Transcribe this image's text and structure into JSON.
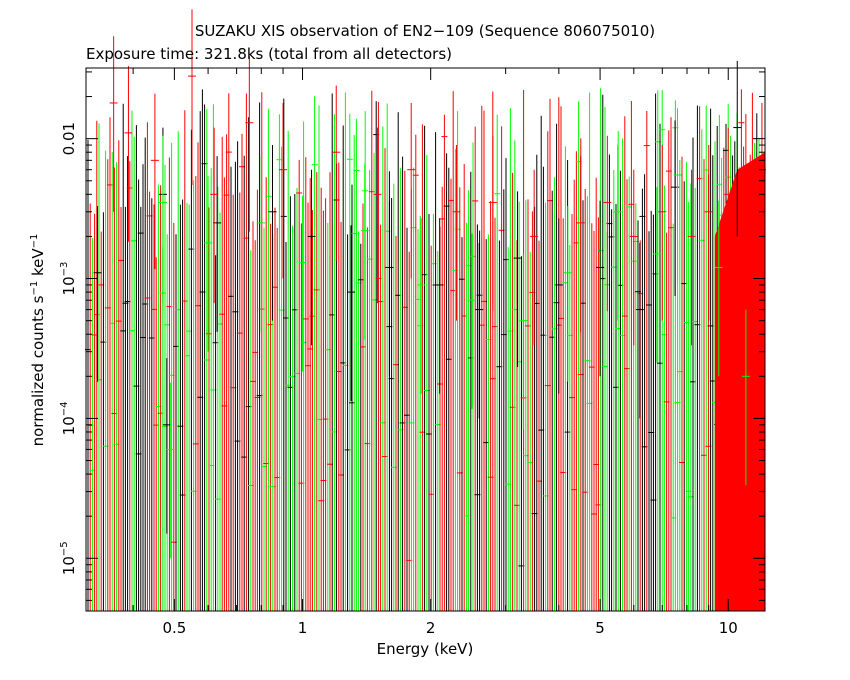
{
  "chart_data": {
    "type": "scatter",
    "title": "SUZAKU XIS observation of EN2−109 (Sequence 806075010)",
    "subtitle": "Exposure time: 321.8ks (total from all detectors)",
    "xlabel": "Energy (keV)",
    "ylabel": {
      "main": "normalized counts s",
      "exp1": "−1",
      "unit": " keV",
      "exp2": "−1"
    },
    "xscale": "log",
    "yscale": "log",
    "xlim": [
      0.31,
      12.2
    ],
    "ylim": [
      4.2e-06,
      0.032
    ],
    "xticks": [
      {
        "value": 0.5,
        "label": "0.5"
      },
      {
        "value": 1,
        "label": "1"
      },
      {
        "value": 2,
        "label": "2"
      },
      {
        "value": 5,
        "label": "5"
      },
      {
        "value": 10,
        "label": "10"
      }
    ],
    "yticks": [
      {
        "value": 0.01,
        "base": "0.01",
        "exp": ""
      },
      {
        "value": 0.001,
        "base": "10",
        "exp": "−3"
      },
      {
        "value": 0.0001,
        "base": "10",
        "exp": "−4"
      },
      {
        "value": 1e-05,
        "base": "10",
        "exp": "−5"
      }
    ],
    "series": [
      {
        "color": "#000000",
        "points": [
          [
            0.33,
            0.0011
          ],
          [
            0.47,
            0.004
          ],
          [
            0.48,
            9e-05
          ],
          [
            0.63,
            0.0025
          ],
          [
            0.85,
            0.003
          ],
          [
            1.05,
            0.002
          ],
          [
            1.3,
            0.0008
          ],
          [
            1.6,
            0.0012
          ],
          [
            2.1,
            0.0009
          ],
          [
            2.6,
            0.0006
          ],
          [
            3.2,
            0.0014
          ],
          [
            4.0,
            0.0009
          ],
          [
            5.0,
            0.0012
          ],
          [
            6.2,
            0.0006
          ],
          [
            7.5,
            0.0045
          ],
          [
            10.5,
            0.012
          ]
        ]
      },
      {
        "color": "#00ff00",
        "points": [
          [
            0.47,
            0.0035
          ],
          [
            0.49,
            6e-05
          ],
          [
            0.6,
            0.0018
          ],
          [
            0.8,
            0.0025
          ],
          [
            1.0,
            0.0013
          ],
          [
            1.4,
            0.0022
          ],
          [
            1.9,
            0.0009
          ],
          [
            2.5,
            0.0007
          ],
          [
            3.3,
            0.0005
          ],
          [
            4.2,
            0.0011
          ],
          [
            5.5,
            0.003
          ],
          [
            6.8,
            0.0015
          ],
          [
            7.6,
            0.0055
          ],
          [
            9.5,
            0.0012
          ],
          [
            11.0,
            0.0002
          ]
        ]
      },
      {
        "color": "#ff0000",
        "points": [
          [
            0.36,
            0.018
          ],
          [
            0.39,
            0.011
          ],
          [
            0.45,
            0.007
          ],
          [
            0.55,
            0.028
          ],
          [
            0.62,
            0.004
          ],
          [
            0.75,
            0.013
          ],
          [
            0.9,
            0.006
          ],
          [
            1.2,
            0.008
          ],
          [
            1.5,
            0.004
          ],
          [
            1.8,
            0.006
          ],
          [
            2.3,
            0.003
          ],
          [
            2.8,
            0.0035
          ],
          [
            3.5,
            0.002
          ],
          [
            4.5,
            0.0025
          ],
          [
            5.2,
            0.0035
          ],
          [
            6.0,
            0.002
          ],
          [
            7.0,
            0.003
          ],
          [
            8.2,
            0.002
          ],
          [
            9.0,
            0.003
          ],
          [
            10.0,
            0.004
          ],
          [
            11.0,
            0.005
          ],
          [
            12.0,
            0.006
          ]
        ]
      }
    ]
  }
}
